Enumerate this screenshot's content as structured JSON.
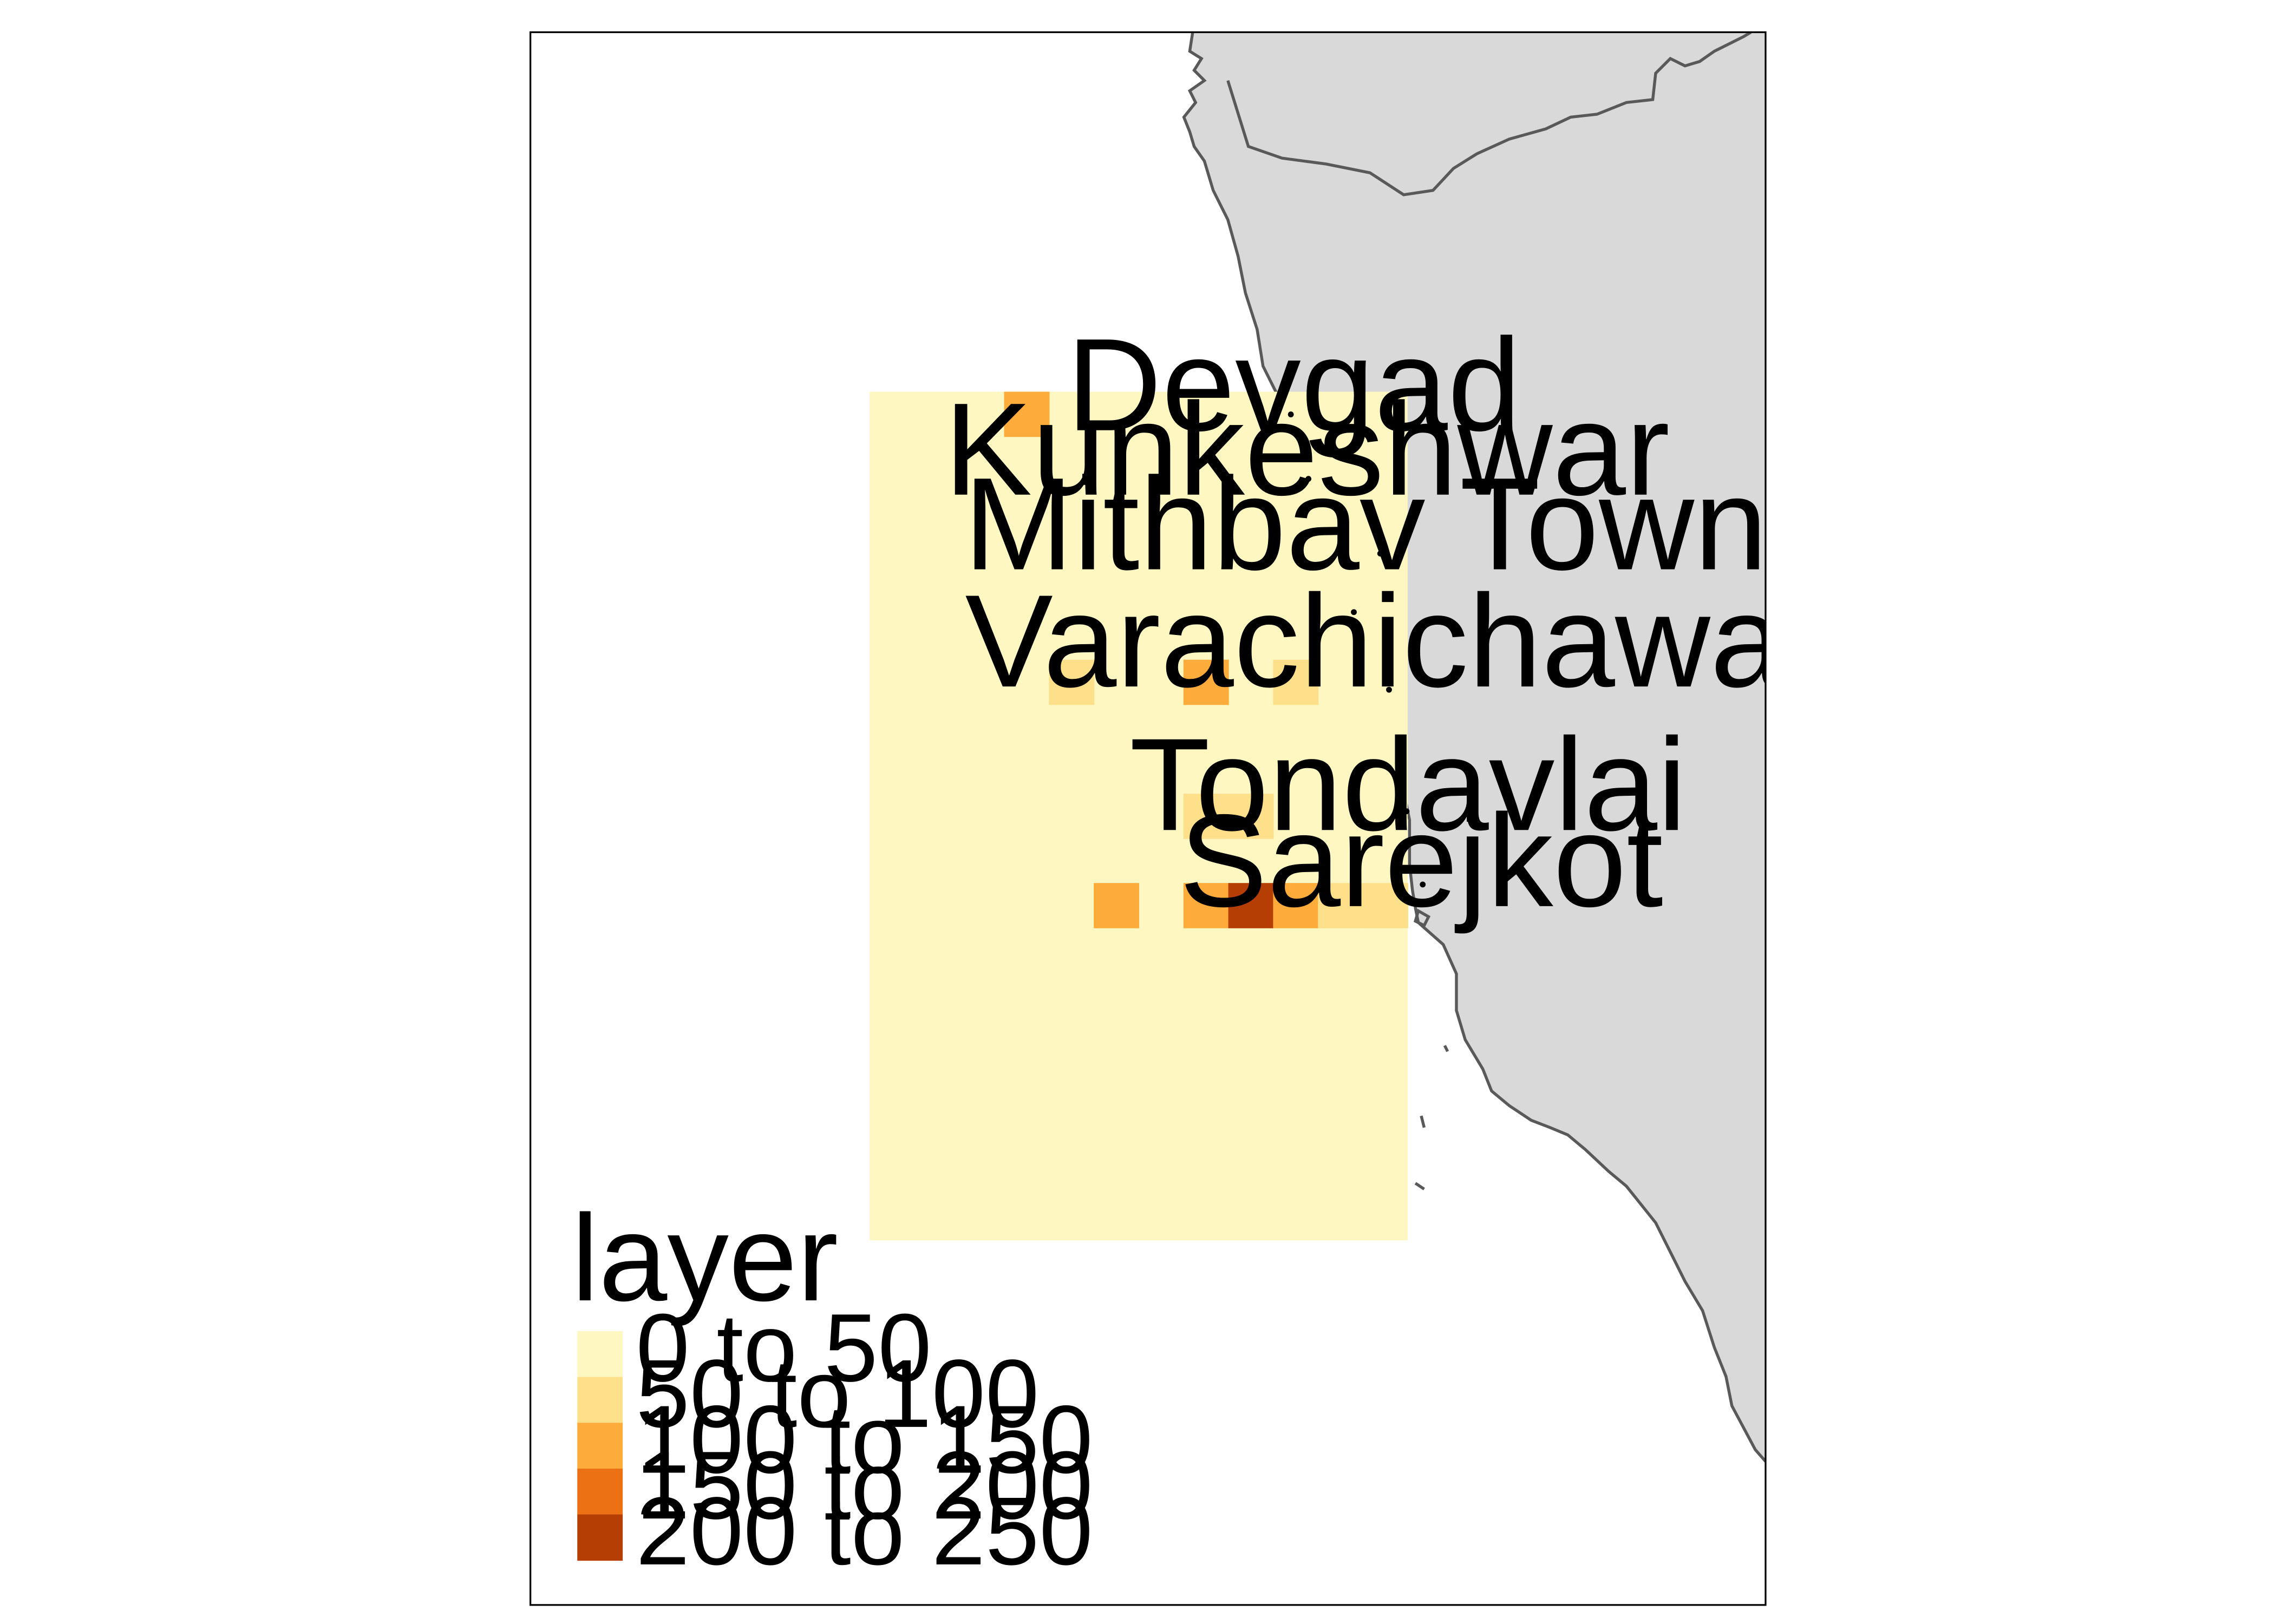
{
  "map": {
    "places": [
      {
        "name": "Devgad"
      },
      {
        "name": "Kunkeshwar"
      },
      {
        "name": "Mithbav Town"
      },
      {
        "name": "Varachichawadi"
      },
      {
        "name": "Tondavlai"
      },
      {
        "name": "Sarejkot"
      }
    ],
    "land_color": "#d9d9d9",
    "coastline_color": "#595959",
    "frame_color": "#000000"
  },
  "raster": {
    "base_class": 0,
    "elevated_cells": [
      {
        "row": 0,
        "col": 3,
        "class": 2
      },
      {
        "row": 6,
        "col": 4,
        "class": 1
      },
      {
        "row": 6,
        "col": 7,
        "class": 2
      },
      {
        "row": 6,
        "col": 9,
        "class": 1
      },
      {
        "row": 9,
        "col": 7,
        "class": 1
      },
      {
        "row": 9,
        "col": 8,
        "class": 1
      },
      {
        "row": 11,
        "col": 5,
        "class": 2
      },
      {
        "row": 11,
        "col": 7,
        "class": 2
      },
      {
        "row": 11,
        "col": 8,
        "class": 4
      },
      {
        "row": 11,
        "col": 9,
        "class": 2
      },
      {
        "row": 11,
        "col": 10,
        "class": 1
      },
      {
        "row": 11,
        "col": 11,
        "class": 1
      }
    ]
  },
  "legend": {
    "title": "layer",
    "classes": [
      {
        "label": "0 to 50",
        "color": "#fff7c2"
      },
      {
        "label": "50 to 100",
        "color": "#fee08b"
      },
      {
        "label": "100 to 150",
        "color": "#fdab3a"
      },
      {
        "label": "150 to 200",
        "color": "#ec7014"
      },
      {
        "label": "200 to 250",
        "color": "#b43e04"
      }
    ]
  }
}
